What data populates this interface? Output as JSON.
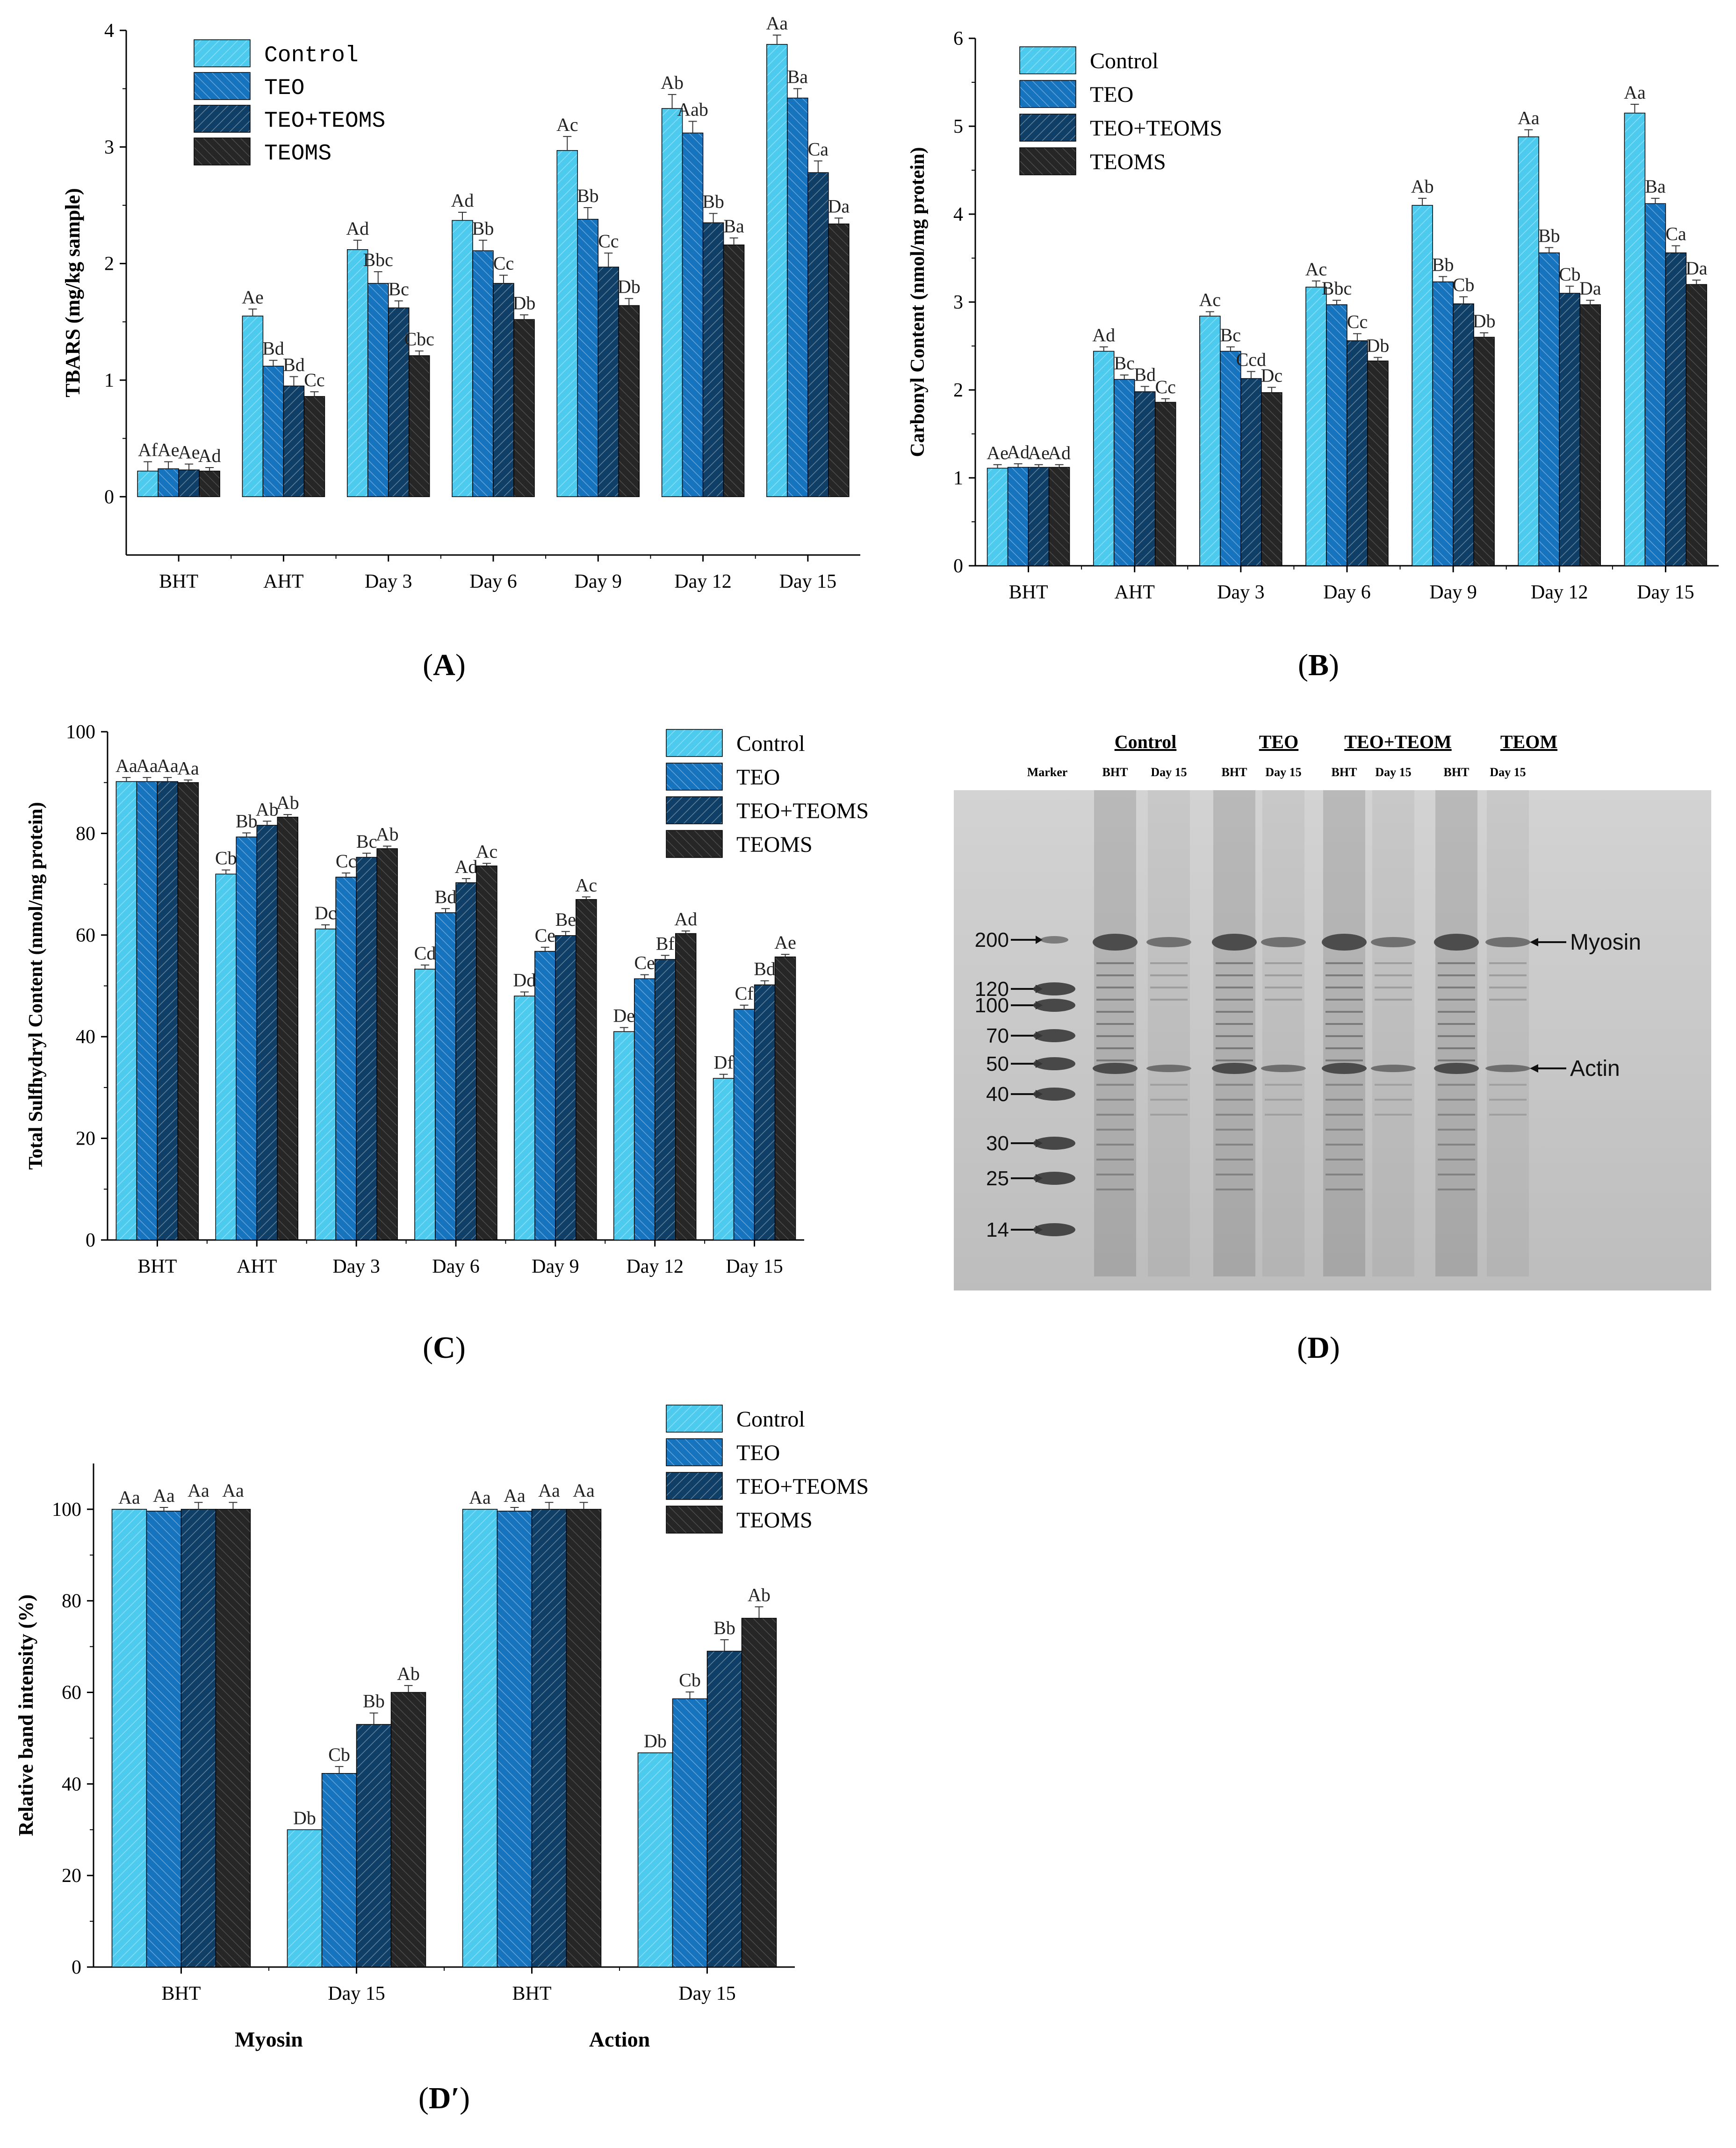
{
  "colors": {
    "Control": "#4dcbef",
    "TEO": "#1673be",
    "TEO+TEOMS": "#0f3f66",
    "TEOMS": "#262626",
    "gel_bg": "#c9c9c9",
    "gel_band": "#3a3a3a"
  },
  "panels": {
    "A": {
      "caption_letter": "A"
    },
    "B": {
      "caption_letter": "B"
    },
    "C": {
      "caption_letter": "C"
    },
    "D": {
      "caption_letter": "D"
    },
    "Dp": {
      "caption_letter": "D′"
    }
  },
  "chart_data": [
    {
      "id": "A",
      "type": "bar",
      "ylabel": "TBARS (mg/kg sample)",
      "xlabel": "",
      "ylim": [
        -0.5,
        4
      ],
      "yticks": [
        0,
        1,
        2,
        3,
        4
      ],
      "categories": [
        "BHT",
        "AHT",
        "Day 3",
        "Day 6",
        "Day 9",
        "Day 12",
        "Day 15"
      ],
      "legend": [
        "Control",
        "TEO",
        "TEO+TEOMS",
        "TEOMS"
      ],
      "legend_font": "mono",
      "series": [
        {
          "name": "Control",
          "values": [
            0.22,
            1.55,
            2.12,
            2.37,
            2.97,
            3.33,
            3.88
          ],
          "errors": [
            0.08,
            0.06,
            0.08,
            0.07,
            0.12,
            0.12,
            0.08
          ],
          "labels": [
            "Af",
            "Ae",
            "Ad",
            "Ad",
            "Ac",
            "Ab",
            "Aa"
          ]
        },
        {
          "name": "TEO",
          "values": [
            0.24,
            1.12,
            1.83,
            2.11,
            2.38,
            3.12,
            3.42
          ],
          "errors": [
            0.06,
            0.05,
            0.1,
            0.09,
            0.1,
            0.1,
            0.08
          ],
          "labels": [
            "Ae",
            "Bd",
            "Bbc",
            "Bb",
            "Bb",
            "Aab",
            "Ba"
          ]
        },
        {
          "name": "TEO+TEOMS",
          "values": [
            0.23,
            0.95,
            1.62,
            1.83,
            1.97,
            2.35,
            2.78
          ],
          "errors": [
            0.05,
            0.08,
            0.06,
            0.07,
            0.12,
            0.08,
            0.1
          ],
          "labels": [
            "Ae",
            "Bd",
            "Bc",
            "Cc",
            "Cc",
            "Bb",
            "Ca"
          ]
        },
        {
          "name": "TEOMS",
          "values": [
            0.22,
            0.86,
            1.21,
            1.52,
            1.64,
            2.16,
            2.34
          ],
          "errors": [
            0.03,
            0.04,
            0.04,
            0.04,
            0.06,
            0.06,
            0.05
          ],
          "labels": [
            "Ad",
            "Cc",
            "Cbc",
            "Db",
            "Db",
            "Ba",
            "Da"
          ]
        }
      ]
    },
    {
      "id": "B",
      "type": "bar",
      "ylabel": "Carbonyl Content (nmol/mg protein)",
      "xlabel": "",
      "ylim": [
        0,
        6
      ],
      "yticks": [
        0,
        1,
        2,
        3,
        4,
        5,
        6
      ],
      "categories": [
        "BHT",
        "AHT",
        "Day 3",
        "Day 6",
        "Day 9",
        "Day 12",
        "Day 15"
      ],
      "legend": [
        "Control",
        "TEO",
        "TEO+TEOMS",
        "TEOMS"
      ],
      "legend_font": "serif",
      "series": [
        {
          "name": "Control",
          "values": [
            1.11,
            2.44,
            2.84,
            3.17,
            4.1,
            4.88,
            5.15
          ],
          "errors": [
            0.04,
            0.05,
            0.05,
            0.07,
            0.08,
            0.08,
            0.1
          ],
          "labels": [
            "Ae",
            "Ad",
            "Ac",
            "Ac",
            "Ab",
            "Aa",
            "Aa"
          ]
        },
        {
          "name": "TEO",
          "values": [
            1.12,
            2.12,
            2.44,
            2.97,
            3.23,
            3.56,
            4.12
          ],
          "errors": [
            0.04,
            0.05,
            0.05,
            0.05,
            0.06,
            0.06,
            0.06
          ],
          "labels": [
            "Ad",
            "Bc",
            "Bc",
            "Bbc",
            "Bb",
            "Bb",
            "Ba"
          ]
        },
        {
          "name": "TEO+TEOMS",
          "values": [
            1.12,
            1.98,
            2.13,
            2.56,
            2.98,
            3.1,
            3.56
          ],
          "errors": [
            0.03,
            0.06,
            0.08,
            0.08,
            0.08,
            0.08,
            0.08
          ],
          "labels": [
            "Ae",
            "Bd",
            "Ccd",
            "Cc",
            "Cb",
            "Cb",
            "Ca"
          ]
        },
        {
          "name": "TEOMS",
          "values": [
            1.12,
            1.86,
            1.97,
            2.33,
            2.6,
            2.97,
            3.2
          ],
          "errors": [
            0.03,
            0.04,
            0.06,
            0.04,
            0.05,
            0.05,
            0.05
          ],
          "labels": [
            "Ad",
            "Cc",
            "Dc",
            "Db",
            "Db",
            "Da",
            "Da"
          ]
        }
      ]
    },
    {
      "id": "C",
      "type": "bar",
      "ylabel": "Total  Sulfhydryl Content (nmol/mg protein)",
      "xlabel": "",
      "ylim": [
        0,
        100
      ],
      "yticks": [
        0,
        20,
        40,
        60,
        80,
        100
      ],
      "categories": [
        "BHT",
        "AHT",
        "Day 3",
        "Day 6",
        "Day 9",
        "Day 12",
        "Day 15"
      ],
      "legend": [
        "Control",
        "TEO",
        "TEO+TEOMS",
        "TEOMS"
      ],
      "legend_font": "serif",
      "series": [
        {
          "name": "Control",
          "values": [
            90.2,
            72.0,
            61.2,
            53.3,
            48.0,
            41.0,
            31.8
          ],
          "errors": [
            0.8,
            0.8,
            0.8,
            0.8,
            0.8,
            0.8,
            0.8
          ],
          "labels": [
            "Aa",
            "Cb",
            "Dc",
            "Cd",
            "Dd",
            "De",
            "Df"
          ]
        },
        {
          "name": "TEO",
          "values": [
            90.2,
            79.3,
            71.4,
            64.4,
            56.8,
            51.4,
            45.4
          ],
          "errors": [
            0.8,
            0.8,
            0.8,
            0.8,
            0.8,
            0.8,
            0.8
          ],
          "labels": [
            "Aa",
            "Bb",
            "Cc",
            "Bd",
            "Ce",
            "Ce",
            "Cf"
          ]
        },
        {
          "name": "TEO+TEOMS",
          "values": [
            90.2,
            81.6,
            75.3,
            70.3,
            59.9,
            55.2,
            50.2
          ],
          "errors": [
            0.8,
            0.8,
            0.8,
            0.8,
            0.8,
            0.8,
            0.8
          ],
          "labels": [
            "Aa",
            "Ab",
            "Bc",
            "Ad",
            "Be",
            "Bf",
            "Bd"
          ]
        },
        {
          "name": "TEOMS",
          "values": [
            90.0,
            83.2,
            77.0,
            73.6,
            67.0,
            60.3,
            55.7
          ],
          "errors": [
            0.5,
            0.5,
            0.5,
            0.5,
            0.5,
            0.5,
            0.5
          ],
          "labels": [
            "Aa",
            "Ab",
            "Ab",
            "Ac",
            "Ac",
            "Ad",
            "Ae"
          ]
        }
      ]
    },
    {
      "id": "Dp",
      "type": "bar",
      "ylabel": "Relative  band intensity (%)",
      "xlabel": "",
      "ylim": [
        0,
        110
      ],
      "yticks": [
        0,
        20,
        40,
        60,
        80,
        100
      ],
      "categories": [
        "BHT",
        "Day 15",
        "BHT",
        "Day 15"
      ],
      "group_labels": [
        "Myosin",
        "Action"
      ],
      "legend": [
        "Control",
        "TEO",
        "TEO+TEOMS",
        "TEOMS"
      ],
      "legend_font": "serif",
      "series": [
        {
          "name": "Control",
          "values": [
            100,
            30.0,
            100,
            46.8
          ],
          "errors": [
            0,
            0,
            0,
            0
          ],
          "labels": [
            "Aa",
            "Db",
            "Aa",
            "Db"
          ]
        },
        {
          "name": "TEO",
          "values": [
            99.6,
            42.3,
            99.6,
            58.6
          ],
          "errors": [
            0.8,
            1.5,
            0.8,
            1.5
          ],
          "labels": [
            "Aa",
            "Cb",
            "Aa",
            "Cb"
          ]
        },
        {
          "name": "TEO+TEOMS",
          "values": [
            100,
            53.0,
            100,
            69.0
          ],
          "errors": [
            1.5,
            2.5,
            1.5,
            2.5
          ],
          "labels": [
            "Aa",
            "Bb",
            "Aa",
            "Bb"
          ]
        },
        {
          "name": "TEOMS",
          "values": [
            100,
            60.0,
            100,
            76.2
          ],
          "errors": [
            1.5,
            1.5,
            1.5,
            2.5
          ],
          "labels": [
            "Aa",
            "Ab",
            "Aa",
            "Ab"
          ]
        }
      ]
    }
  ],
  "gel": {
    "group_headers": [
      "Control",
      "TEO",
      "TEO+TEOM",
      "TEOM"
    ],
    "lane_labels": [
      "Marker",
      "BHT",
      "Day 15",
      "BHT",
      "Day 15",
      "BHT",
      "Day 15",
      "BHT",
      "Day 15"
    ],
    "marker_sizes": [
      "200",
      "120",
      "100",
      "70",
      "50",
      "40",
      "30",
      "25",
      "14"
    ],
    "band_labels": [
      "Myosin",
      "Actin"
    ]
  }
}
